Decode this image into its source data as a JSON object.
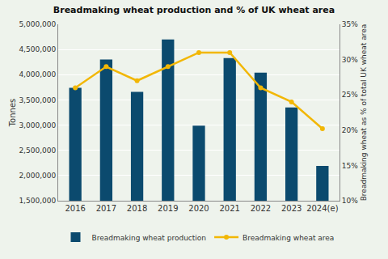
{
  "chart_data": {
    "type": "bar",
    "title": "Breadmaking wheat production and % of UK wheat area",
    "y_label": "Tonnes",
    "y2_label": "Breadmaking wheat as % of total UK wheat area",
    "categories": [
      "2016",
      "2017",
      "2018",
      "2019",
      "2020",
      "2021",
      "2022",
      "2023",
      "2024(e)"
    ],
    "series": [
      {
        "name": "Breadmaking wheat production",
        "type": "bar",
        "color": "#0b4a6e",
        "values": [
          3740000,
          4300000,
          3660000,
          4700000,
          2990000,
          4330000,
          4040000,
          3350000,
          2190000
        ]
      },
      {
        "name": "Breadmaking wheat area",
        "type": "line",
        "axis": "y2",
        "color": "#f2b705",
        "marker": "circle",
        "values": [
          26,
          29,
          27,
          29,
          31,
          31,
          26,
          24,
          20.2
        ]
      }
    ],
    "ylim": [
      1500000,
      5000000
    ],
    "yticks": [
      {
        "value": 1500000,
        "label": "1,500,000"
      },
      {
        "value": 2000000,
        "label": "2,000,000"
      },
      {
        "value": 2500000,
        "label": "2,500,000"
      },
      {
        "value": 3000000,
        "label": "3,000,000"
      },
      {
        "value": 3500000,
        "label": "3,500,000"
      },
      {
        "value": 4000000,
        "label": "4,000,000"
      },
      {
        "value": 4500000,
        "label": "4,500,000"
      },
      {
        "value": 5000000,
        "label": "5,000,000"
      }
    ],
    "y2lim": [
      10,
      35
    ],
    "y2ticks": [
      {
        "value": 10,
        "label": "10%"
      },
      {
        "value": 15,
        "label": "15%"
      },
      {
        "value": 20,
        "label": "20%"
      },
      {
        "value": 25,
        "label": "25%"
      },
      {
        "value": 30,
        "label": "30%"
      },
      {
        "value": 35,
        "label": "35%"
      }
    ],
    "grid": true,
    "legend": "bottom"
  }
}
